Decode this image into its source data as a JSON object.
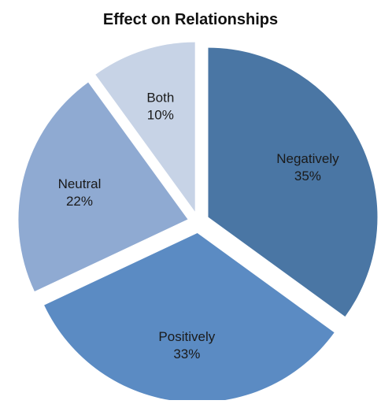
{
  "chart_data": {
    "type": "pie",
    "title": "Effect on Relationships",
    "slices": [
      {
        "label": "Negatively",
        "value": 35,
        "value_label": "35%",
        "color": "#4a76a4",
        "exploded": true
      },
      {
        "label": "Positively",
        "value": 33,
        "value_label": "33%",
        "color": "#5b8bc3",
        "exploded": true
      },
      {
        "label": "Neutral",
        "value": 22,
        "value_label": "22%",
        "color": "#8faad2",
        "exploded": true
      },
      {
        "label": "Both",
        "value": 10,
        "value_label": "10%",
        "color": "#c7d3e6",
        "exploded": true
      }
    ],
    "start_angle_degrees": 0,
    "direction": "clockwise",
    "legend": "none"
  }
}
